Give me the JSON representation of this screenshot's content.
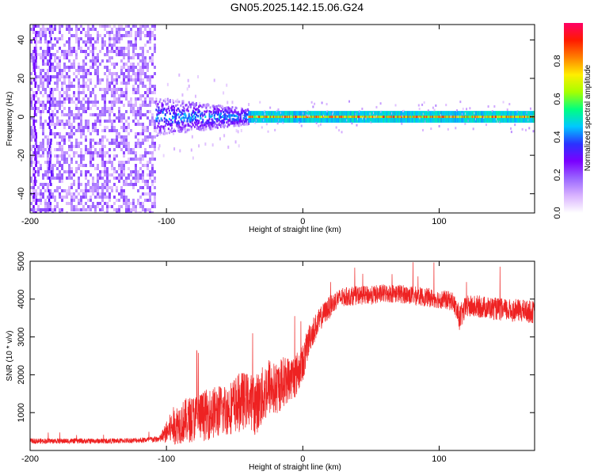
{
  "figure_title": "GN05.2025.142.15.06.G24",
  "colors": {
    "snr_line": "#ee2222",
    "axis": "#000000"
  },
  "chart_data": [
    {
      "type": "heatmap",
      "xlabel": "Height of straight line (km)",
      "ylabel": "Frequency (Hz)",
      "xlim": [
        -200,
        170
      ],
      "ylim": [
        -50,
        48
      ],
      "xticks": [
        -200,
        -100,
        0,
        100
      ],
      "yticks": [
        -40,
        -20,
        0,
        20,
        40
      ],
      "colorbar": {
        "label": "Normalized spectral amplitude",
        "range": [
          0,
          1
        ],
        "ticks": [
          "0.0",
          "0.2",
          "0.4",
          "0.6",
          "0.8"
        ],
        "colormap": [
          "#ffffff",
          "#d9b3ff",
          "#9a66ff",
          "#7a00ff",
          "#2a33ff",
          "#00c8ff",
          "#00ff80",
          "#a6ff00",
          "#ffee00",
          "#ff8000",
          "#ff1a00",
          "#ff0066"
        ]
      },
      "bands": [
        {
          "x": [
            -200,
            -108
          ],
          "freq_spread": 48,
          "amplitude": 0.18,
          "note_visible": false
        },
        {
          "x": [
            -108,
            -40
          ],
          "freq_spread": 10,
          "amplitude": 0.35
        },
        {
          "x": [
            -40,
            170
          ],
          "freq_spread": 3,
          "amplitude": 0.75
        }
      ]
    },
    {
      "type": "line",
      "xlabel": "Height of straight line (km)",
      "ylabel": "SNR (10 * v/v)",
      "xlim": [
        -200,
        170
      ],
      "ylim": [
        0,
        5000
      ],
      "xticks": [
        -200,
        -100,
        0,
        100
      ],
      "yticks": [
        1000,
        2000,
        3000,
        4000,
        5000
      ],
      "series": [
        {
          "x": [
            -200,
            -180,
            -160,
            -140,
            -120,
            -105,
            -95,
            -85,
            -75,
            -65,
            -55,
            -45,
            -40,
            -35,
            -30,
            -25,
            -20,
            -15,
            -10,
            -5,
            0,
            5,
            10,
            15,
            20,
            25,
            30,
            40,
            50,
            60,
            70,
            80,
            90,
            100,
            110,
            115,
            120,
            130,
            140,
            150,
            160,
            170
          ],
          "values": [
            250,
            250,
            250,
            250,
            270,
            300,
            650,
            800,
            900,
            1000,
            1100,
            1300,
            1350,
            1200,
            1400,
            1700,
            1600,
            1800,
            1900,
            2000,
            2300,
            3000,
            3300,
            3600,
            3800,
            4000,
            4050,
            4100,
            4100,
            4150,
            4150,
            4100,
            4050,
            4000,
            3950,
            3500,
            3800,
            3800,
            3750,
            3700,
            3700,
            3650
          ],
          "noise": [
            70,
            70,
            70,
            70,
            70,
            90,
            500,
            600,
            650,
            700,
            700,
            800,
            700,
            800,
            800,
            800,
            700,
            700,
            600,
            600,
            500,
            400,
            350,
            300,
            300,
            250,
            250,
            250,
            250,
            250,
            250,
            250,
            250,
            250,
            250,
            350,
            300,
            300,
            300,
            300,
            300,
            300
          ]
        }
      ]
    }
  ]
}
